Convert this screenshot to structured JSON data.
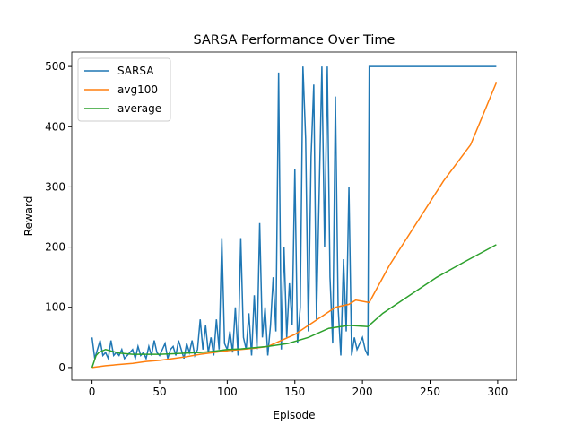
{
  "chart_data": {
    "type": "line",
    "title": "SARSA Performance Over Time",
    "xlabel": "Episode",
    "ylabel": "Reward",
    "xlim": [
      -15,
      314
    ],
    "ylim": [
      -21,
      524
    ],
    "xticks": [
      0,
      50,
      100,
      150,
      200,
      250,
      300
    ],
    "yticks": [
      0,
      100,
      200,
      300,
      400,
      500
    ],
    "legend": "upper left",
    "series": [
      {
        "name": "SARSA",
        "color": "#1f77b4",
        "x": [
          0,
          2,
          4,
          6,
          8,
          10,
          12,
          14,
          16,
          18,
          20,
          22,
          24,
          26,
          28,
          30,
          32,
          34,
          36,
          38,
          40,
          42,
          44,
          46,
          48,
          50,
          52,
          54,
          56,
          58,
          60,
          62,
          64,
          66,
          68,
          70,
          72,
          74,
          76,
          78,
          80,
          82,
          84,
          86,
          88,
          90,
          92,
          94,
          96,
          98,
          100,
          102,
          104,
          106,
          108,
          110,
          112,
          114,
          116,
          118,
          120,
          122,
          124,
          126,
          128,
          130,
          132,
          134,
          136,
          138,
          140,
          142,
          144,
          146,
          148,
          150,
          152,
          154,
          156,
          158,
          160,
          162,
          164,
          166,
          168,
          170,
          172,
          174,
          176,
          178,
          180,
          182,
          184,
          186,
          188,
          190,
          192,
          194,
          196,
          198,
          200,
          202,
          204,
          205,
          299
        ],
        "values": [
          50,
          15,
          30,
          45,
          20,
          25,
          15,
          45,
          20,
          25,
          20,
          30,
          15,
          20,
          25,
          30,
          15,
          35,
          20,
          25,
          15,
          35,
          20,
          45,
          25,
          20,
          30,
          40,
          15,
          30,
          35,
          20,
          45,
          30,
          15,
          40,
          25,
          45,
          20,
          30,
          80,
          30,
          70,
          25,
          50,
          20,
          80,
          30,
          215,
          40,
          30,
          60,
          25,
          100,
          20,
          215,
          50,
          30,
          90,
          20,
          120,
          30,
          240,
          50,
          100,
          20,
          70,
          150,
          60,
          490,
          30,
          200,
          50,
          140,
          70,
          330,
          40,
          100,
          500,
          380,
          60,
          350,
          470,
          80,
          290,
          500,
          200,
          500,
          150,
          40,
          450,
          100,
          20,
          180,
          60,
          300,
          20,
          50,
          30,
          40,
          50,
          30,
          20,
          500,
          500
        ]
      },
      {
        "name": "avg100",
        "color": "#ff7f0e",
        "x": [
          0,
          10,
          20,
          30,
          40,
          50,
          60,
          70,
          80,
          90,
          100,
          110,
          120,
          130,
          140,
          150,
          160,
          170,
          180,
          190,
          195,
          200,
          205,
          220,
          240,
          260,
          280,
          299
        ],
        "values": [
          0,
          3,
          5,
          7,
          10,
          12,
          15,
          18,
          22,
          25,
          28,
          30,
          32,
          35,
          45,
          55,
          70,
          85,
          100,
          105,
          112,
          110,
          108,
          170,
          240,
          310,
          370,
          473
        ]
      },
      {
        "name": "average",
        "color": "#2ca02c",
        "x": [
          0,
          3,
          5,
          10,
          20,
          30,
          40,
          50,
          60,
          70,
          80,
          90,
          100,
          110,
          120,
          130,
          145,
          160,
          175,
          190,
          204,
          215,
          235,
          255,
          275,
          299
        ],
        "values": [
          0,
          20,
          25,
          30,
          24,
          22,
          22,
          22,
          23,
          24,
          25,
          27,
          30,
          31,
          33,
          35,
          40,
          50,
          65,
          70,
          68,
          90,
          120,
          150,
          175,
          204
        ]
      }
    ]
  }
}
